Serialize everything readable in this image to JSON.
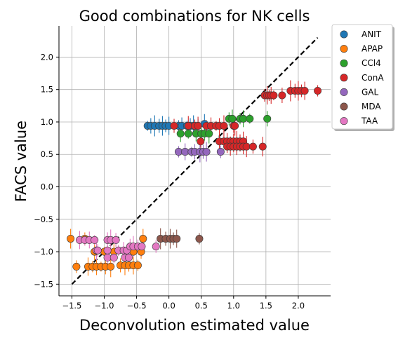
{
  "chart_data": {
    "type": "scatter",
    "title": "Good combinations for NK cells",
    "xlabel": "Deconvolution estimated value",
    "ylabel": "FACS value",
    "xlim": [
      -1.7,
      2.5
    ],
    "ylim": [
      -1.68,
      2.48
    ],
    "xticks": [
      -1.5,
      -1.0,
      -0.5,
      0.0,
      0.5,
      1.0,
      1.5,
      2.0
    ],
    "xtick_labels": [
      "−1.5",
      "−1.0",
      "−0.5",
      "0.0",
      "0.5",
      "1.0",
      "1.5",
      "2.0"
    ],
    "yticks": [
      -1.5,
      -1.0,
      -0.5,
      0.0,
      0.5,
      1.0,
      1.5,
      2.0
    ],
    "ytick_labels": [
      "−1.5",
      "−1.0",
      "−0.5",
      "0.0",
      "0.5",
      "1.0",
      "1.5",
      "2.0"
    ],
    "grid": true,
    "legend_position": "outside-top-right",
    "identity_line": {
      "from": [
        -1.5,
        -1.5
      ],
      "to": [
        2.3,
        2.3
      ],
      "color": "#000000",
      "style": "dashed"
    },
    "series": [
      {
        "name": "ANIT",
        "color": "#1f77b4",
        "points": [
          [
            -0.33,
            0.94
          ],
          [
            -0.28,
            0.94
          ],
          [
            -0.22,
            0.94
          ],
          [
            -0.15,
            0.94
          ],
          [
            -0.1,
            0.94
          ],
          [
            -0.05,
            0.94
          ],
          [
            0.0,
            0.94
          ],
          [
            0.15,
            0.94
          ],
          [
            0.2,
            0.94
          ],
          [
            0.28,
            0.94
          ],
          [
            0.33,
            0.94
          ],
          [
            0.38,
            0.94
          ],
          [
            0.45,
            0.94
          ],
          [
            0.55,
            0.97
          ]
        ]
      },
      {
        "name": "APAP",
        "color": "#ff7f0e",
        "points": [
          [
            -1.52,
            -0.8
          ],
          [
            -1.43,
            -1.23
          ],
          [
            -1.25,
            -1.23
          ],
          [
            -1.18,
            -1.23
          ],
          [
            -1.12,
            -1.23
          ],
          [
            -1.05,
            -1.23
          ],
          [
            -0.98,
            -1.23
          ],
          [
            -0.9,
            -1.23
          ],
          [
            -0.75,
            -1.21
          ],
          [
            -0.68,
            -1.21
          ],
          [
            -0.62,
            -1.21
          ],
          [
            -0.55,
            -1.21
          ],
          [
            -0.48,
            -1.21
          ],
          [
            -1.15,
            -1.0
          ],
          [
            -1.0,
            -1.0
          ],
          [
            -0.85,
            -1.0
          ],
          [
            -0.55,
            -1.0
          ],
          [
            -0.43,
            -1.0
          ],
          [
            -0.4,
            -0.8
          ],
          [
            -1.3,
            -0.8
          ]
        ]
      },
      {
        "name": "CCl4",
        "color": "#2ca02c",
        "points": [
          [
            0.18,
            0.82
          ],
          [
            0.3,
            0.82
          ],
          [
            0.42,
            0.82
          ],
          [
            0.5,
            0.82
          ],
          [
            0.55,
            0.82
          ],
          [
            0.62,
            0.82
          ],
          [
            0.93,
            1.05
          ],
          [
            0.98,
            1.05
          ],
          [
            1.1,
            1.05
          ],
          [
            1.15,
            1.05
          ],
          [
            1.25,
            1.05
          ],
          [
            1.52,
            1.05
          ]
        ]
      },
      {
        "name": "ConA",
        "color": "#d62728",
        "points": [
          [
            0.08,
            0.94
          ],
          [
            0.3,
            0.94
          ],
          [
            0.4,
            0.94
          ],
          [
            0.45,
            0.94
          ],
          [
            0.58,
            0.94
          ],
          [
            0.65,
            0.94
          ],
          [
            0.73,
            0.94
          ],
          [
            0.78,
            0.94
          ],
          [
            0.85,
            0.94
          ],
          [
            1.0,
            0.94
          ],
          [
            1.02,
            0.94
          ],
          [
            0.49,
            0.7
          ],
          [
            0.78,
            0.7
          ],
          [
            0.85,
            0.7
          ],
          [
            0.9,
            0.7
          ],
          [
            0.95,
            0.7
          ],
          [
            1.0,
            0.7
          ],
          [
            1.05,
            0.7
          ],
          [
            1.1,
            0.7
          ],
          [
            1.15,
            0.7
          ],
          [
            0.9,
            0.62
          ],
          [
            0.95,
            0.62
          ],
          [
            1.0,
            0.62
          ],
          [
            1.05,
            0.62
          ],
          [
            1.1,
            0.62
          ],
          [
            1.15,
            0.62
          ],
          [
            1.2,
            0.62
          ],
          [
            1.3,
            0.62
          ],
          [
            1.45,
            0.62
          ],
          [
            1.48,
            1.41
          ],
          [
            1.52,
            1.41
          ],
          [
            1.55,
            1.41
          ],
          [
            1.58,
            1.41
          ],
          [
            1.62,
            1.41
          ],
          [
            1.75,
            1.41
          ],
          [
            1.88,
            1.48
          ],
          [
            1.95,
            1.48
          ],
          [
            2.0,
            1.48
          ],
          [
            2.05,
            1.48
          ],
          [
            2.1,
            1.48
          ],
          [
            2.3,
            1.48
          ]
        ]
      },
      {
        "name": "GAL",
        "color": "#9467bd",
        "points": [
          [
            0.15,
            0.54
          ],
          [
            0.25,
            0.54
          ],
          [
            0.35,
            0.54
          ],
          [
            0.4,
            0.54
          ],
          [
            0.48,
            0.54
          ],
          [
            0.53,
            0.54
          ],
          [
            0.58,
            0.54
          ],
          [
            0.8,
            0.54
          ]
        ]
      },
      {
        "name": "MDA",
        "color": "#8c564b",
        "points": [
          [
            -0.13,
            -0.8
          ],
          [
            -0.05,
            -0.8
          ],
          [
            0.02,
            -0.8
          ],
          [
            0.07,
            -0.8
          ],
          [
            0.12,
            -0.8
          ],
          [
            0.47,
            -0.8
          ]
        ]
      },
      {
        "name": "TAA",
        "color": "#e377c2",
        "points": [
          [
            -1.38,
            -0.82
          ],
          [
            -1.3,
            -0.82
          ],
          [
            -1.23,
            -0.82
          ],
          [
            -1.15,
            -0.82
          ],
          [
            -0.95,
            -0.82
          ],
          [
            -0.9,
            -0.82
          ],
          [
            -0.82,
            -0.82
          ],
          [
            -1.12,
            -0.98
          ],
          [
            -1.1,
            -0.98
          ],
          [
            -0.95,
            -0.98
          ],
          [
            -0.78,
            -0.98
          ],
          [
            -0.7,
            -0.98
          ],
          [
            -0.65,
            -0.98
          ],
          [
            -0.6,
            -0.92
          ],
          [
            -0.55,
            -0.92
          ],
          [
            -0.48,
            -0.92
          ],
          [
            -0.42,
            -0.92
          ],
          [
            -0.2,
            -0.92
          ],
          [
            -0.95,
            -1.09
          ],
          [
            -0.85,
            -1.09
          ],
          [
            -0.68,
            -1.09
          ],
          [
            -0.62,
            -1.09
          ]
        ]
      }
    ]
  }
}
